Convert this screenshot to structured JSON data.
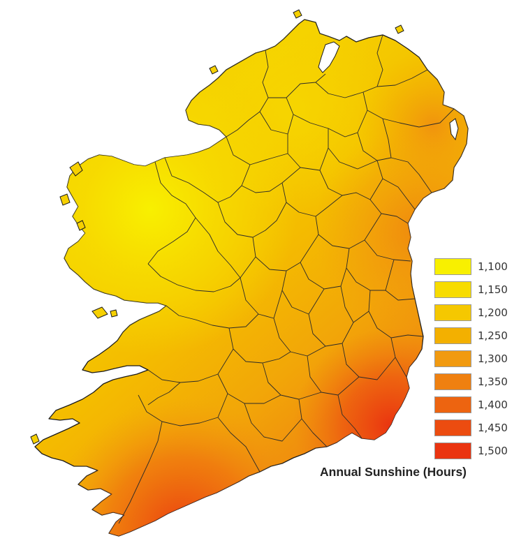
{
  "legend": {
    "title": "Annual Sunshine (Hours)",
    "entries": [
      {
        "label": "1,100",
        "color": "#f8f000"
      },
      {
        "label": "1,150",
        "color": "#f7dc00"
      },
      {
        "label": "1,200",
        "color": "#f5c800"
      },
      {
        "label": "1,250",
        "color": "#f3b000"
      },
      {
        "label": "1,300",
        "color": "#f19a10"
      },
      {
        "label": "1,350",
        "color": "#ef8010"
      },
      {
        "label": "1,400",
        "color": "#ed6410"
      },
      {
        "label": "1,450",
        "color": "#ec4c10"
      },
      {
        "label": "1,500",
        "color": "#ea3410"
      }
    ]
  },
  "colors": {
    "outline": "#1a1a1a",
    "background": "#ffffff",
    "lough": "#ffffff"
  }
}
